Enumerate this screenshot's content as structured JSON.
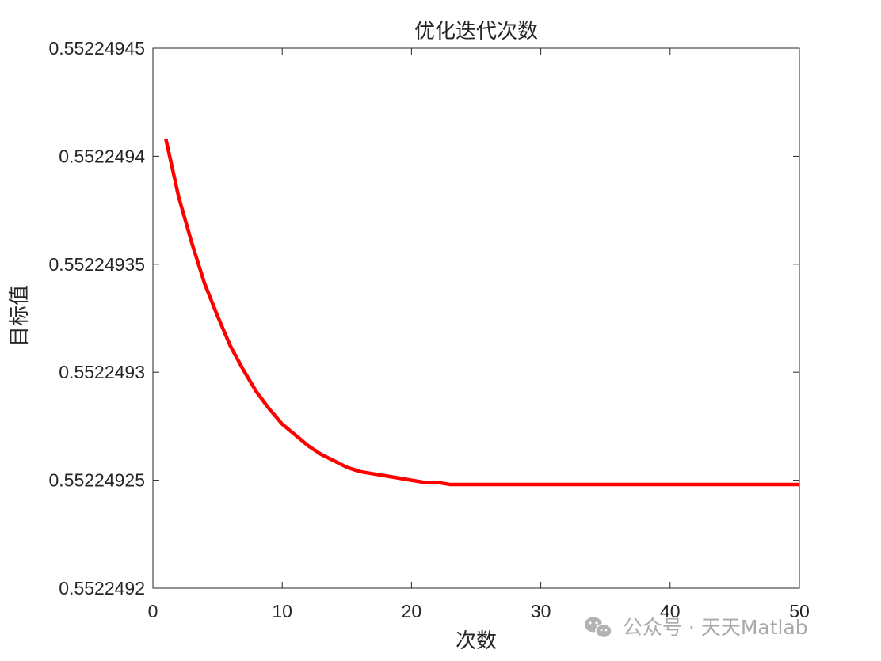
{
  "chart_data": {
    "type": "line",
    "title": "优化迭代次数",
    "xlabel": "次数",
    "ylabel": "目标值",
    "xlim": [
      0,
      50
    ],
    "ylim": [
      0.5522492,
      0.55224945
    ],
    "x_ticks": [
      0,
      10,
      20,
      30,
      40,
      50
    ],
    "x_tick_labels": [
      "0",
      "10",
      "20",
      "30",
      "40",
      "50"
    ],
    "y_ticks": [
      0.5522492,
      0.55224925,
      0.5522493,
      0.55224935,
      0.5522494,
      0.55224945
    ],
    "y_tick_labels": [
      "0.5522492",
      "0.55224925",
      "0.5522493",
      "0.55224935",
      "0.5522494",
      "0.55224945"
    ],
    "grid": false,
    "series": [
      {
        "color": "#ff0000",
        "x": [
          1,
          2,
          3,
          4,
          5,
          6,
          7,
          8,
          9,
          10,
          11,
          12,
          13,
          14,
          15,
          16,
          17,
          18,
          19,
          20,
          21,
          22,
          23,
          24,
          25,
          26,
          27,
          28,
          29,
          30,
          31,
          32,
          33,
          34,
          35,
          36,
          37,
          38,
          39,
          40,
          41,
          42,
          43,
          44,
          45,
          46,
          47,
          48,
          49,
          50
        ],
        "values": [
          0.552249408,
          0.552249381,
          0.55224936,
          0.552249341,
          0.552249326,
          0.552249312,
          0.552249301,
          0.552249291,
          0.552249283,
          0.552249276,
          0.552249271,
          0.552249266,
          0.552249262,
          0.552249259,
          0.552249256,
          0.552249254,
          0.552249253,
          0.552249252,
          0.552249251,
          0.55224925,
          0.552249249,
          0.552249249,
          0.552249248,
          0.552249248,
          0.552249248,
          0.552249248,
          0.552249248,
          0.552249248,
          0.552249248,
          0.552249248,
          0.552249248,
          0.552249248,
          0.552249248,
          0.552249248,
          0.552249248,
          0.552249248,
          0.552249248,
          0.552249248,
          0.552249248,
          0.552249248,
          0.552249248,
          0.552249248,
          0.552249248,
          0.552249248,
          0.552249248,
          0.552249248,
          0.552249248,
          0.552249248,
          0.552249248,
          0.552249248
        ]
      }
    ]
  },
  "watermark": {
    "text": "公众号 · 天天Matlab",
    "icon": "wechat-icon",
    "color": "#a9a9a9"
  }
}
